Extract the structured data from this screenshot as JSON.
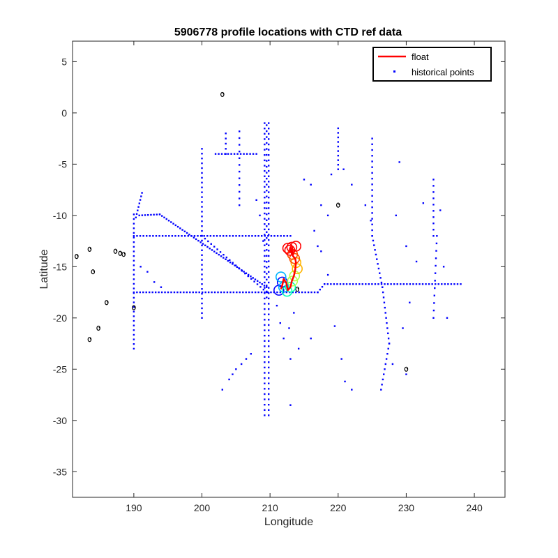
{
  "chart_data": {
    "type": "scatter",
    "title": "5906778 profile locations with CTD ref data",
    "xlabel": "Longitude",
    "ylabel": "Latitude",
    "xlim": [
      181,
      244.5
    ],
    "ylim": [
      -37.5,
      7
    ],
    "xticks": [
      190,
      200,
      210,
      220,
      230,
      240
    ],
    "yticks": [
      5,
      0,
      -5,
      -10,
      -15,
      -20,
      -25,
      -30,
      -35
    ],
    "grid": false,
    "legend_position": "top-right",
    "colors": {
      "float": "#ff0000",
      "historical": "#0000ff",
      "coastline": "#000000",
      "profile_circles": [
        "#0000ff",
        "#00b4ff",
        "#00ffb4",
        "#b4ff4c",
        "#ffb400",
        "#ff4c00",
        "#ff0000"
      ]
    },
    "series": [
      {
        "name": "float",
        "style": "line",
        "x": [
          211.6,
          211.8,
          212.0,
          212.4,
          212.6,
          213.0,
          213.2,
          213.5,
          213.7,
          213.8,
          213.7,
          213.4,
          213.1,
          212.9,
          213.0,
          213.2,
          213.4
        ],
        "y": [
          -17.2,
          -16.8,
          -16.2,
          -16.6,
          -17.3,
          -17.0,
          -16.4,
          -15.9,
          -15.3,
          -14.6,
          -14.2,
          -14.0,
          -13.6,
          -13.3,
          -13.1,
          -13.4,
          -13.9
        ]
      },
      {
        "name": "historical points",
        "style": "points",
        "lines": [
          {
            "x0": 209.2,
            "y0": -1.0,
            "x1": 209.2,
            "y1": -29.5,
            "n": 56
          },
          {
            "x0": 209.8,
            "y0": -1.0,
            "x1": 209.8,
            "y1": -29.5,
            "n": 56
          },
          {
            "x0": 209.5,
            "y0": -1.2,
            "x1": 209.5,
            "y1": -18.0,
            "n": 30
          },
          {
            "x0": 190.0,
            "y0": -17.5,
            "x1": 217.0,
            "y1": -17.5,
            "n": 60
          },
          {
            "x0": 217.0,
            "y0": -17.5,
            "x1": 218.0,
            "y1": -16.7,
            "n": 4
          },
          {
            "x0": 218.0,
            "y0": -16.7,
            "x1": 238.0,
            "y1": -16.7,
            "n": 44
          },
          {
            "x0": 190.0,
            "y0": -12.0,
            "x1": 213.0,
            "y1": -12.0,
            "n": 50
          },
          {
            "x0": 190.0,
            "y0": -9.9,
            "x1": 190.0,
            "y1": -23.0,
            "n": 30
          },
          {
            "x0": 190.8,
            "y0": -10.0,
            "x1": 193.8,
            "y1": -9.9,
            "n": 8
          },
          {
            "x0": 193.8,
            "y0": -9.9,
            "x1": 209.5,
            "y1": -17.0,
            "n": 48
          },
          {
            "x0": 200.0,
            "y0": -3.5,
            "x1": 200.0,
            "y1": -20.0,
            "n": 36
          },
          {
            "x0": 191.2,
            "y0": -7.8,
            "x1": 190.3,
            "y1": -10.2,
            "n": 8
          },
          {
            "x0": 200.0,
            "y0": -12.0,
            "x1": 209.5,
            "y1": -17.5,
            "n": 22
          },
          {
            "x0": 225.0,
            "y0": -12.0,
            "x1": 226.5,
            "y1": -17.0,
            "n": 12
          },
          {
            "x0": 226.5,
            "y0": -17.0,
            "x1": 227.5,
            "y1": -22.5,
            "n": 12
          },
          {
            "x0": 227.5,
            "y0": -22.5,
            "x1": 226.3,
            "y1": -27.0,
            "n": 10
          },
          {
            "x0": 220.0,
            "y0": -1.5,
            "x1": 220.0,
            "y1": -5.5,
            "n": 10
          },
          {
            "x0": 225.0,
            "y0": -2.5,
            "x1": 225.0,
            "y1": -12.0,
            "n": 18
          },
          {
            "x0": 234.0,
            "y0": -6.5,
            "x1": 234.0,
            "y1": -12.0,
            "n": 10
          },
          {
            "x0": 234.5,
            "y0": -12.0,
            "x1": 234.0,
            "y1": -20.0,
            "n": 12
          },
          {
            "x0": 202.0,
            "y0": -4.0,
            "x1": 208.0,
            "y1": -4.0,
            "n": 14
          },
          {
            "x0": 205.5,
            "y0": -1.8,
            "x1": 205.5,
            "y1": -9.0,
            "n": 12
          },
          {
            "x0": 203.5,
            "y0": -2.0,
            "x1": 203.5,
            "y1": -4.0,
            "n": 5
          }
        ],
        "x": [
          203.0,
          204.0,
          205.0,
          205.8,
          206.5,
          207.2,
          204.5,
          208.0,
          208.5,
          209.0,
          212.0,
          212.8,
          213.5,
          214.2,
          213.0,
          216.0,
          217.0,
          217.5,
          218.5,
          219.0,
          220.8,
          222.0,
          224.0,
          224.8,
          228.5,
          229.0,
          230.0,
          230.5,
          231.5,
          232.5,
          235.0,
          235.5,
          236.0,
          229.5,
          228.0,
          230.0,
          213.0,
          215.0,
          216.0,
          216.5,
          217.5,
          218.5,
          219.5,
          220.5,
          221.0,
          222.0,
          211.0,
          211.5,
          193.0,
          194.0,
          192.0,
          191.0
        ],
        "y": [
          -27.0,
          -26.0,
          -25.0,
          -24.5,
          -24.0,
          -23.5,
          -25.5,
          -8.5,
          -10.0,
          -12.5,
          -22.0,
          -21.0,
          -19.5,
          -23.0,
          -24.0,
          -22.0,
          -13.0,
          -9.0,
          -10.0,
          -6.0,
          -5.5,
          -7.0,
          -9.0,
          -10.5,
          -10.0,
          -4.8,
          -13.0,
          -18.5,
          -14.5,
          -8.8,
          -9.5,
          -15.0,
          -20.0,
          -21.0,
          -24.5,
          -25.5,
          -28.5,
          -6.5,
          -7.0,
          -11.5,
          -13.5,
          -15.8,
          -20.8,
          -24.0,
          -26.2,
          -27.0,
          -18.8,
          -20.5,
          -16.5,
          -17.0,
          -15.5,
          -15.0
        ]
      }
    ],
    "coastline_clusters": [
      {
        "x": 203.0,
        "y": 1.8
      },
      {
        "x": 181.6,
        "y": -14.0
      },
      {
        "x": 183.5,
        "y": -13.3
      },
      {
        "x": 184.0,
        "y": -15.5
      },
      {
        "x": 187.3,
        "y": -13.5
      },
      {
        "x": 188.0,
        "y": -13.7
      },
      {
        "x": 188.5,
        "y": -13.8
      },
      {
        "x": 186.0,
        "y": -18.5
      },
      {
        "x": 190.0,
        "y": -19.0
      },
      {
        "x": 184.8,
        "y": -21.0
      },
      {
        "x": 183.5,
        "y": -22.1
      },
      {
        "x": 230.0,
        "y": -25.0
      },
      {
        "x": 220.0,
        "y": -9.0
      },
      {
        "x": 214.0,
        "y": -17.2
      }
    ],
    "profile_circles": [
      {
        "x": 211.3,
        "y": -17.3,
        "c": 0
      },
      {
        "x": 211.8,
        "y": -16.5,
        "c": 0
      },
      {
        "x": 211.6,
        "y": -16.0,
        "c": 1
      },
      {
        "x": 212.0,
        "y": -17.0,
        "c": 1
      },
      {
        "x": 212.5,
        "y": -17.4,
        "c": 2
      },
      {
        "x": 213.0,
        "y": -17.0,
        "c": 2
      },
      {
        "x": 213.3,
        "y": -16.4,
        "c": 3
      },
      {
        "x": 213.6,
        "y": -15.9,
        "c": 3
      },
      {
        "x": 214.0,
        "y": -15.2,
        "c": 4
      },
      {
        "x": 213.8,
        "y": -14.6,
        "c": 4
      },
      {
        "x": 213.6,
        "y": -14.2,
        "c": 5
      },
      {
        "x": 213.3,
        "y": -13.8,
        "c": 5
      },
      {
        "x": 212.9,
        "y": -13.4,
        "c": 6
      },
      {
        "x": 213.2,
        "y": -13.1,
        "c": 6
      },
      {
        "x": 213.8,
        "y": -13.0,
        "c": 6
      },
      {
        "x": 212.6,
        "y": -13.2,
        "c": 6
      }
    ]
  }
}
